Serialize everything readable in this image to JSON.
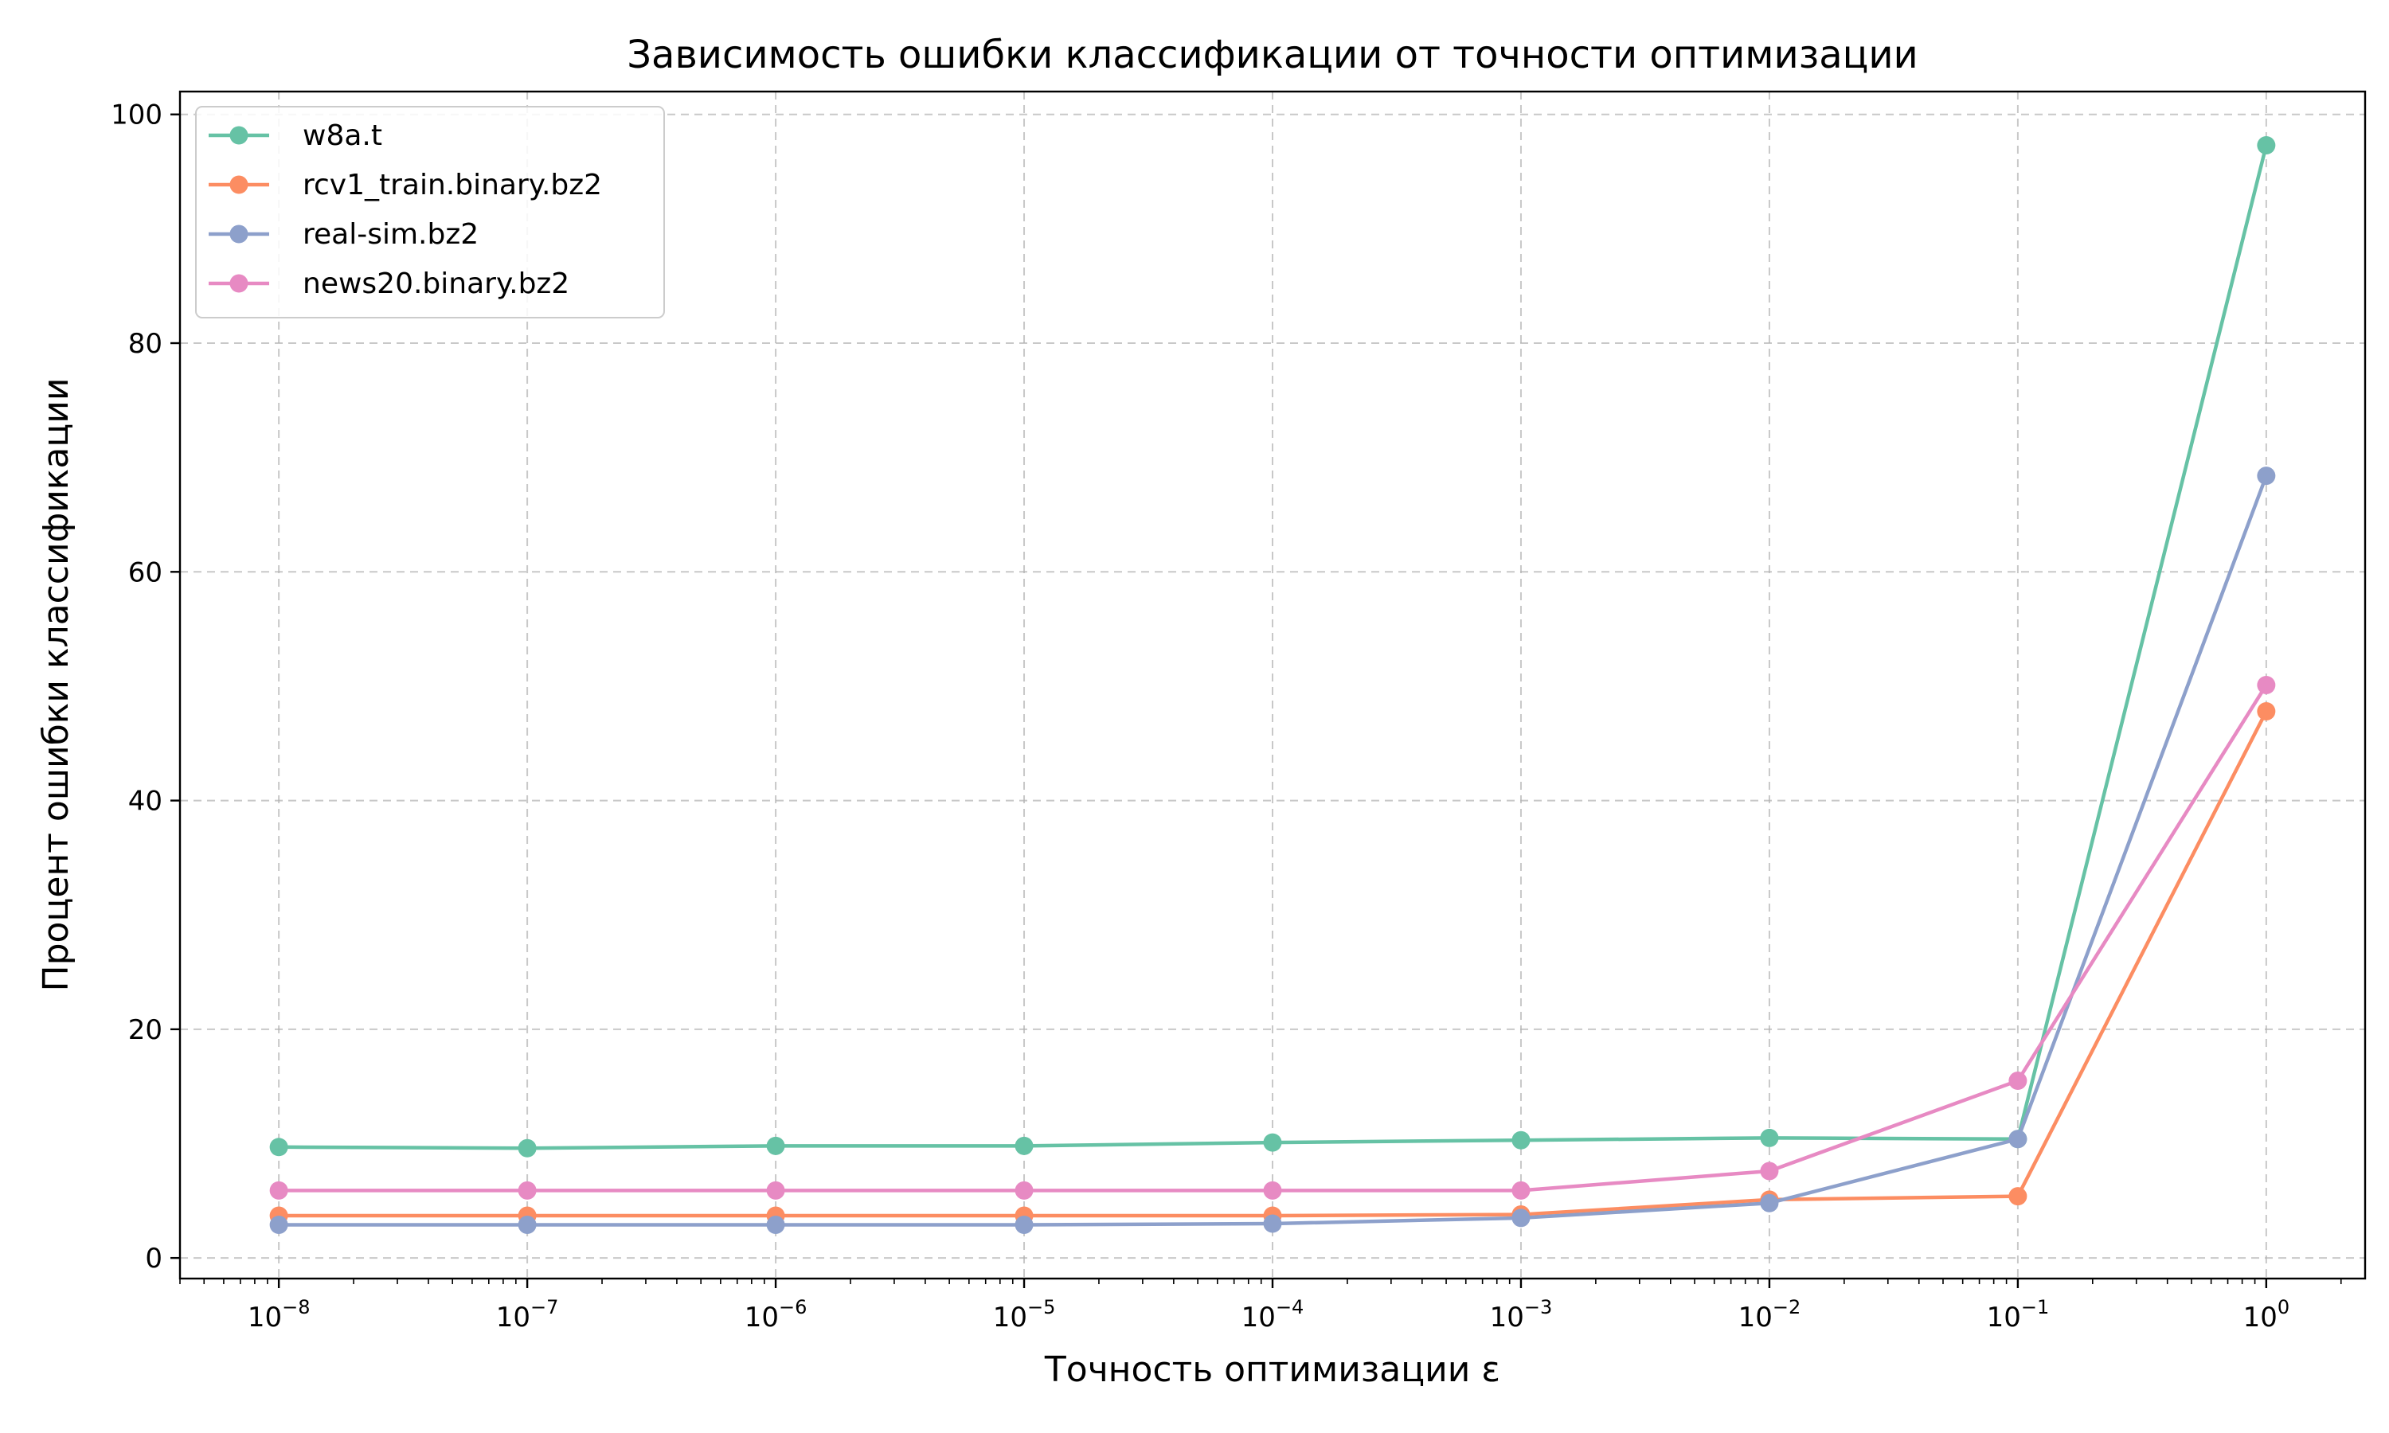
{
  "chart_data": {
    "type": "line",
    "title": "Зависимость ошибки классификации от точности оптимизации",
    "xlabel": "Точность оптимизации ε",
    "ylabel": "Процент ошибки классификации",
    "x_scale": "log",
    "x": [
      1e-08,
      1e-07,
      1e-06,
      1e-05,
      0.0001,
      0.001,
      0.01,
      0.1,
      1
    ],
    "x_tick_labels": [
      {
        "base": "10",
        "exp": "−8"
      },
      {
        "base": "10",
        "exp": "−7"
      },
      {
        "base": "10",
        "exp": "−6"
      },
      {
        "base": "10",
        "exp": "−5"
      },
      {
        "base": "10",
        "exp": "−4"
      },
      {
        "base": "10",
        "exp": "−3"
      },
      {
        "base": "10",
        "exp": "−2"
      },
      {
        "base": "10",
        "exp": "−1"
      },
      {
        "base": "10",
        "exp": "0"
      }
    ],
    "xlim": [
      4e-09,
      2.5
    ],
    "ylim": [
      -1.8,
      102
    ],
    "y_ticks": [
      0,
      20,
      40,
      60,
      80,
      100
    ],
    "grid": true,
    "legend_position": "top-left",
    "series": [
      {
        "name": "w8a.t",
        "color": "#66c2a5",
        "values": [
          9.7,
          9.6,
          9.8,
          9.8,
          10.1,
          10.3,
          10.5,
          10.4,
          97.3
        ]
      },
      {
        "name": "rcv1_train.binary.bz2",
        "color": "#fc8d62",
        "values": [
          3.7,
          3.7,
          3.7,
          3.7,
          3.7,
          3.8,
          5.1,
          5.4,
          47.8
        ]
      },
      {
        "name": "real-sim.bz2",
        "color": "#8da0cb",
        "values": [
          2.9,
          2.9,
          2.9,
          2.9,
          3.0,
          3.5,
          4.8,
          10.4,
          68.4
        ]
      },
      {
        "name": "news20.binary.bz2",
        "color": "#e78ac3",
        "values": [
          5.9,
          5.9,
          5.9,
          5.9,
          5.9,
          5.9,
          7.6,
          15.5,
          50.1
        ]
      }
    ]
  }
}
